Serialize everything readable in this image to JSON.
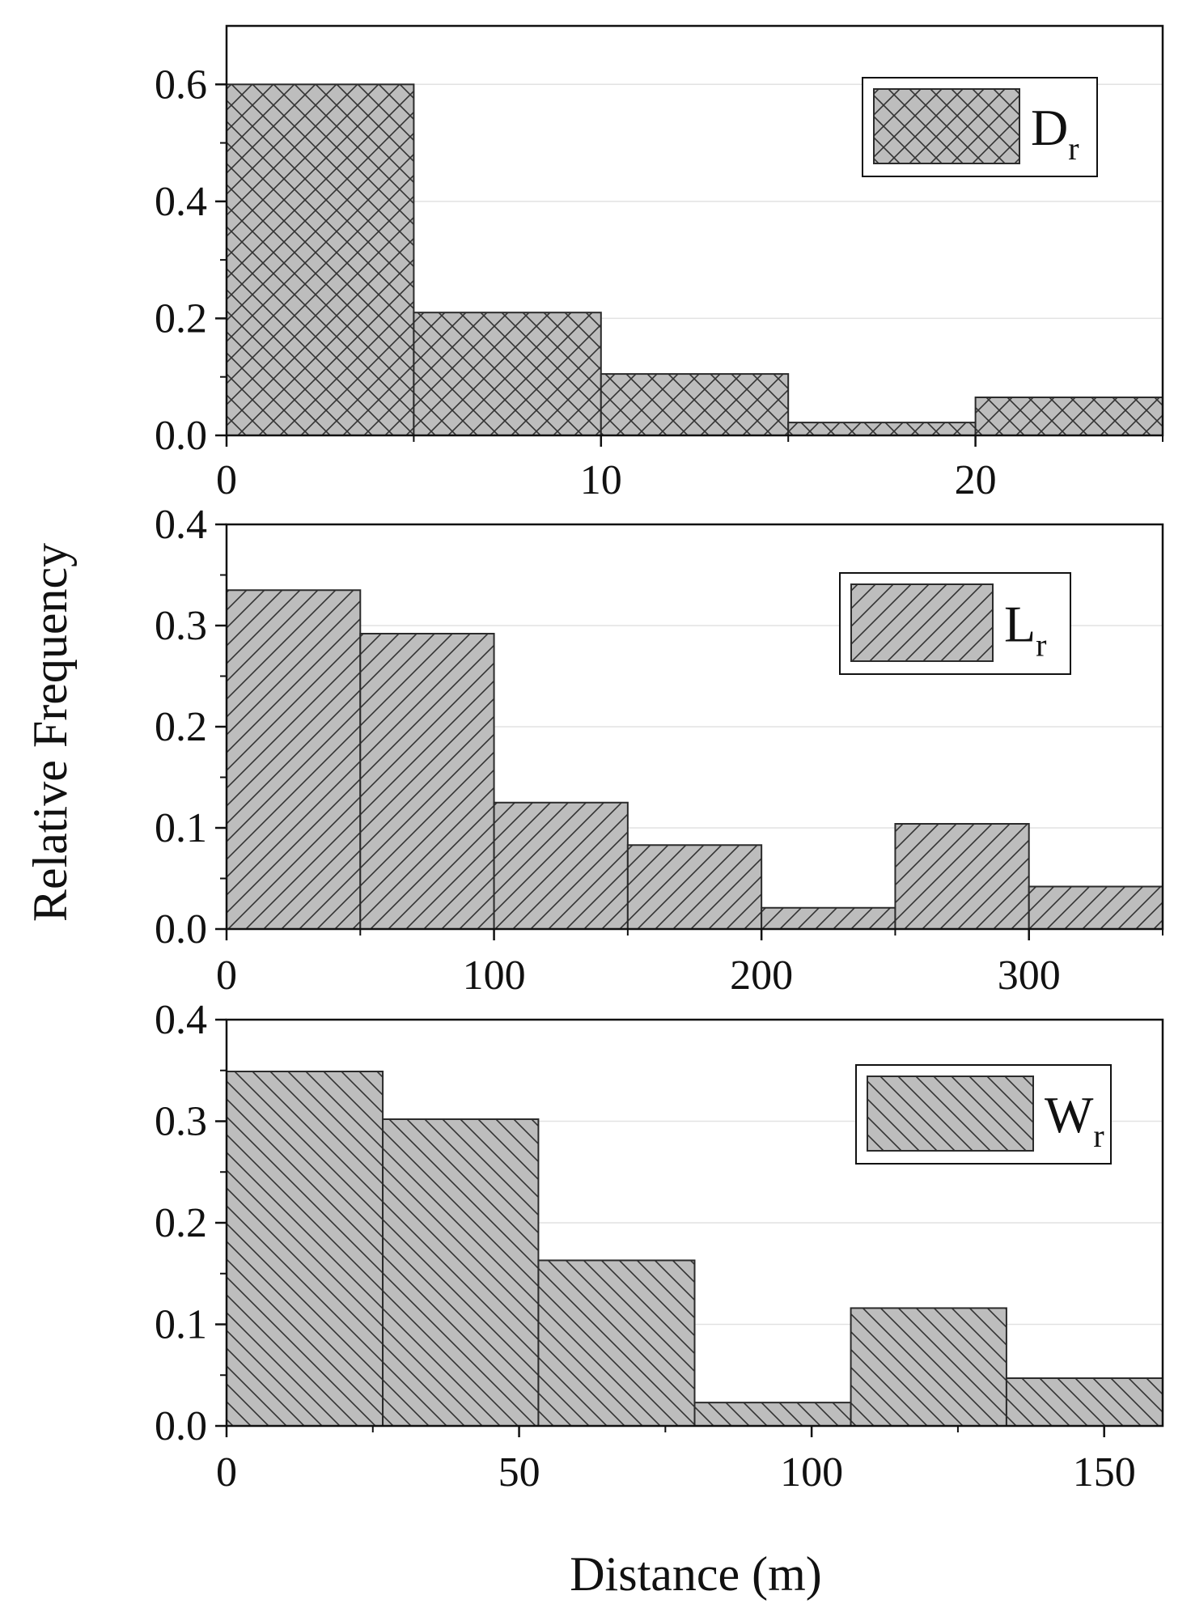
{
  "figure": {
    "ylabel": "Relative Frequency",
    "xlabel": "Distance (m)"
  },
  "chart_data": [
    {
      "type": "bar",
      "legend": {
        "main": "D",
        "sub": "r"
      },
      "pattern": "crosshatch",
      "bar_color": "#bdbdbd",
      "bins": [
        {
          "x0": 0,
          "x1": 5,
          "value": 0.6
        },
        {
          "x0": 5,
          "x1": 10,
          "value": 0.21
        },
        {
          "x0": 10,
          "x1": 15,
          "value": 0.105
        },
        {
          "x0": 15,
          "x1": 20,
          "value": 0.022
        },
        {
          "x0": 20,
          "x1": 25,
          "value": 0.065
        }
      ],
      "xlim": [
        0,
        25
      ],
      "ylim": [
        0,
        0.7
      ],
      "xticks": [
        0,
        10,
        20
      ],
      "xtick_labels": [
        "0",
        "10",
        "20"
      ],
      "yticks": [
        0,
        0.2,
        0.4,
        0.6
      ],
      "ytick_labels": [
        "0.0",
        "0.2",
        "0.4",
        "0.6"
      ],
      "grid": true,
      "legend_position": "top-right"
    },
    {
      "type": "bar",
      "legend": {
        "main": "L",
        "sub": "r"
      },
      "pattern": "forward-diagonal",
      "bar_color": "#bdbdbd",
      "bins": [
        {
          "x0": 0,
          "x1": 50,
          "value": 0.335
        },
        {
          "x0": 50,
          "x1": 100,
          "value": 0.292
        },
        {
          "x0": 100,
          "x1": 150,
          "value": 0.125
        },
        {
          "x0": 150,
          "x1": 200,
          "value": 0.083
        },
        {
          "x0": 200,
          "x1": 250,
          "value": 0.021
        },
        {
          "x0": 250,
          "x1": 300,
          "value": 0.104
        },
        {
          "x0": 300,
          "x1": 350,
          "value": 0.042
        }
      ],
      "xlim": [
        0,
        350
      ],
      "ylim": [
        0,
        0.4
      ],
      "xticks": [
        0,
        100,
        200,
        300
      ],
      "xtick_labels": [
        "0",
        "100",
        "200",
        "300"
      ],
      "yticks": [
        0,
        0.1,
        0.2,
        0.3,
        0.4
      ],
      "ytick_labels": [
        "0.0",
        "0.1",
        "0.2",
        "0.3",
        "0.4"
      ],
      "grid": true,
      "legend_position": "top-right"
    },
    {
      "type": "bar",
      "legend": {
        "main": "W",
        "sub": "r"
      },
      "pattern": "back-diagonal",
      "bar_color": "#bdbdbd",
      "bins": [
        {
          "x0": 0,
          "x1": 26.7,
          "value": 0.349
        },
        {
          "x0": 26.7,
          "x1": 53.3,
          "value": 0.302
        },
        {
          "x0": 53.3,
          "x1": 80,
          "value": 0.163
        },
        {
          "x0": 80,
          "x1": 106.7,
          "value": 0.023
        },
        {
          "x0": 106.7,
          "x1": 133.3,
          "value": 0.116
        },
        {
          "x0": 133.3,
          "x1": 160,
          "value": 0.047
        }
      ],
      "xlim": [
        0,
        160
      ],
      "ylim": [
        0,
        0.4
      ],
      "xticks": [
        0,
        50,
        100,
        150
      ],
      "xtick_labels": [
        "0",
        "50",
        "100",
        "150"
      ],
      "yticks": [
        0,
        0.1,
        0.2,
        0.3,
        0.4
      ],
      "ytick_labels": [
        "0.0",
        "0.1",
        "0.2",
        "0.3",
        "0.4"
      ],
      "grid": true,
      "legend_position": "top-right"
    }
  ]
}
